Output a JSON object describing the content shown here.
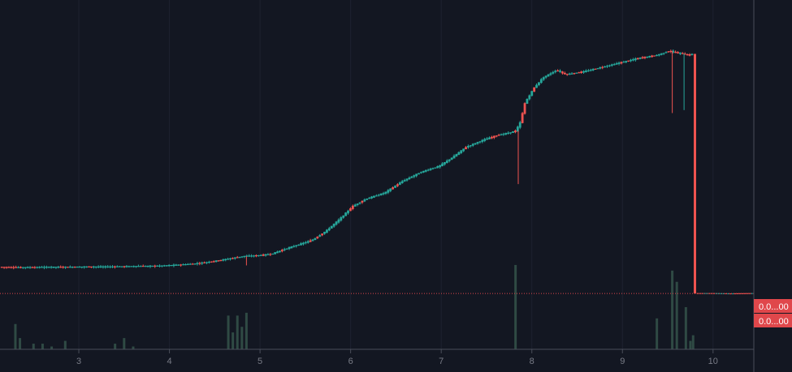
{
  "theme": {
    "background": "#131722",
    "grid": "#1e2230",
    "up": "#26a69a",
    "down": "#ef5350",
    "volume": "#2f4a44",
    "axis_line": "#4a4e5a",
    "tick_text": "#787b86",
    "price_tag_bg": "#e0474b"
  },
  "price_labels": [
    "0.0...00",
    "0.0...00"
  ],
  "chart_data": {
    "type": "candlestick",
    "x_ticks": [
      "3",
      "4",
      "5",
      "6",
      "7",
      "8",
      "9",
      "10"
    ],
    "x_tick_values": [
      3,
      4,
      5,
      6,
      7,
      8,
      9,
      10
    ],
    "xlim": [
      2.13,
      10.45
    ],
    "ylim": [
      0,
      100
    ],
    "grid": true,
    "price_line": 9.0,
    "close_series": [
      [
        2.15,
        17.9
      ],
      [
        2.3,
        17.8
      ],
      [
        2.5,
        17.8
      ],
      [
        2.7,
        17.9
      ],
      [
        2.9,
        17.9
      ],
      [
        3.1,
        18.0
      ],
      [
        3.3,
        18.0
      ],
      [
        3.5,
        18.1
      ],
      [
        3.7,
        18.2
      ],
      [
        3.9,
        18.3
      ],
      [
        4.1,
        18.6
      ],
      [
        4.3,
        19.0
      ],
      [
        4.5,
        19.8
      ],
      [
        4.7,
        20.8
      ],
      [
        4.85,
        21.6
      ],
      [
        5.0,
        21.8
      ],
      [
        5.15,
        22.3
      ],
      [
        5.3,
        24.0
      ],
      [
        5.45,
        25.5
      ],
      [
        5.6,
        27.0
      ],
      [
        5.75,
        30.0
      ],
      [
        5.9,
        34.0
      ],
      [
        6.05,
        38.5
      ],
      [
        6.2,
        41.0
      ],
      [
        6.4,
        43.0
      ],
      [
        6.6,
        47.0
      ],
      [
        6.8,
        50.0
      ],
      [
        7.0,
        52.0
      ],
      [
        7.15,
        55.0
      ],
      [
        7.3,
        58.5
      ],
      [
        7.5,
        61.0
      ],
      [
        7.65,
        62.5
      ],
      [
        7.8,
        63.5
      ],
      [
        7.85,
        64.0
      ],
      [
        7.9,
        67.0
      ],
      [
        7.95,
        73.5
      ],
      [
        8.05,
        78.5
      ],
      [
        8.15,
        82.0
      ],
      [
        8.3,
        84.5
      ],
      [
        8.4,
        83.0
      ],
      [
        8.6,
        84.0
      ],
      [
        8.8,
        85.5
      ],
      [
        9.0,
        87.0
      ],
      [
        9.2,
        88.5
      ],
      [
        9.4,
        89.5
      ],
      [
        9.55,
        91.0
      ],
      [
        9.6,
        90.5
      ],
      [
        9.7,
        90.0
      ],
      [
        9.75,
        89.5
      ],
      [
        9.8,
        90.0
      ],
      [
        9.82,
        9.0
      ],
      [
        10.0,
        9.0
      ],
      [
        10.2,
        8.9
      ],
      [
        10.45,
        9.0
      ]
    ],
    "wicks": [
      {
        "x": 4.85,
        "low": 18.5,
        "color": "down"
      },
      {
        "x": 7.85,
        "low": 46.0,
        "color": "down"
      },
      {
        "x": 9.55,
        "low": 70.0,
        "color": "down"
      },
      {
        "x": 9.68,
        "low": 71.0,
        "color": "up"
      }
    ],
    "drop": {
      "x": 9.8,
      "high": 90.0,
      "low": 9.0
    },
    "volume": [
      {
        "x": 2.3,
        "v": 9
      },
      {
        "x": 2.35,
        "v": 4
      },
      {
        "x": 2.5,
        "v": 2
      },
      {
        "x": 2.6,
        "v": 2
      },
      {
        "x": 2.7,
        "v": 1
      },
      {
        "x": 2.85,
        "v": 3
      },
      {
        "x": 3.4,
        "v": 2
      },
      {
        "x": 3.5,
        "v": 4
      },
      {
        "x": 3.6,
        "v": 1
      },
      {
        "x": 4.65,
        "v": 12
      },
      {
        "x": 4.7,
        "v": 6
      },
      {
        "x": 4.75,
        "v": 12
      },
      {
        "x": 4.8,
        "v": 8
      },
      {
        "x": 4.85,
        "v": 13
      },
      {
        "x": 7.82,
        "v": 30
      },
      {
        "x": 9.38,
        "v": 11
      },
      {
        "x": 9.55,
        "v": 28
      },
      {
        "x": 9.6,
        "v": 24
      },
      {
        "x": 9.7,
        "v": 15
      },
      {
        "x": 9.75,
        "v": 3
      },
      {
        "x": 9.78,
        "v": 5
      }
    ]
  }
}
